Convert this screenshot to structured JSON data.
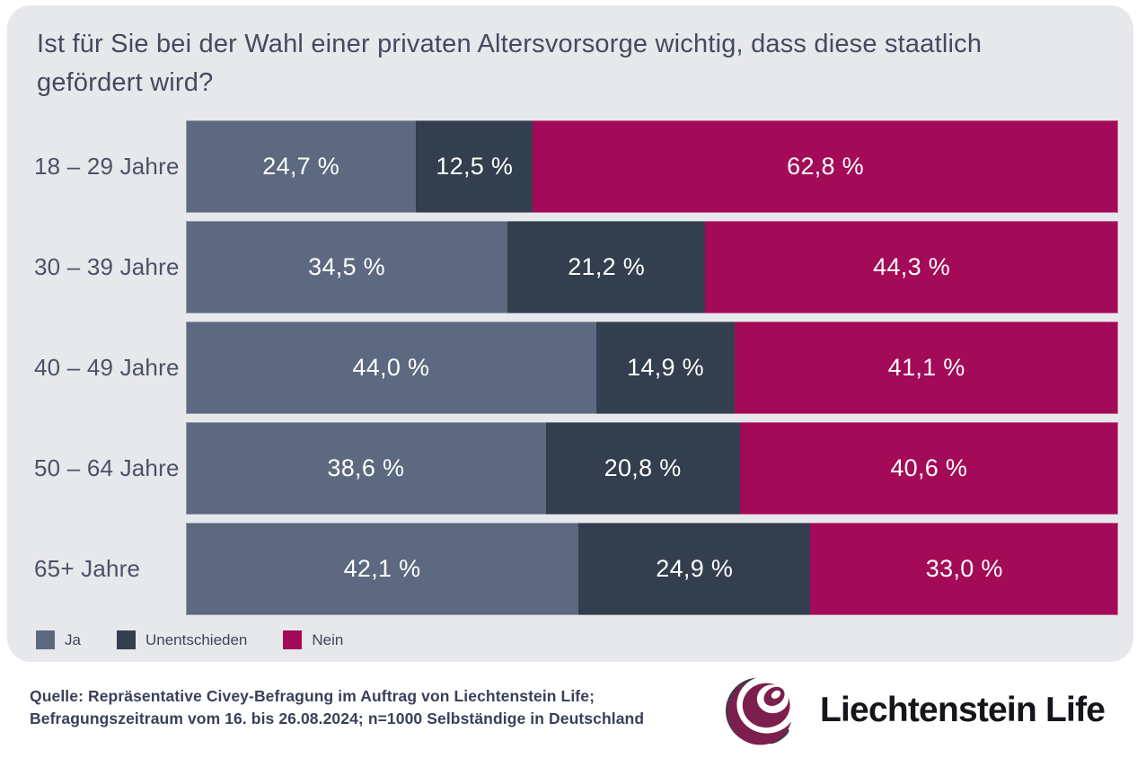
{
  "title": "Ist für Sie bei der Wahl einer privaten Altersvorsorge wichtig, dass diese staatlich gefördert wird?",
  "colors": {
    "card_bg": "#e7e8ec",
    "ja": "#5c6980",
    "unentschieden": "#333e4e",
    "nein": "#a30b58",
    "title_text": "#444b5e",
    "label_text": "#4b5266",
    "bar_value_text": "#ffffff",
    "source_text": "#3a3f5a",
    "logo_magenta": "#7d1f4e",
    "logo_dark": "#3c3c46",
    "logo_text": "#15151e"
  },
  "chart_data": {
    "type": "bar",
    "stacked": true,
    "orientation": "horizontal",
    "xlim": [
      0,
      100
    ],
    "grid": false,
    "value_format": "comma-decimal percent",
    "categories": [
      "18 – 29 Jahre",
      "30 – 39 Jahre",
      "40 – 49 Jahre",
      "50 – 64 Jahre",
      "65+ Jahre"
    ],
    "series": [
      {
        "name": "Ja",
        "color": "#5c6980",
        "values": [
          24.7,
          34.5,
          44.0,
          38.6,
          42.1
        ],
        "display": [
          "24,7 %",
          "34,5 %",
          "44,0 %",
          "38,6 %",
          "42,1 %"
        ]
      },
      {
        "name": "Unentschieden",
        "color": "#333e4e",
        "values": [
          12.5,
          21.2,
          14.9,
          20.8,
          24.9
        ],
        "display": [
          "12,5 %",
          "21,2 %",
          "14,9 %",
          "20,8 %",
          "24,9 %"
        ]
      },
      {
        "name": "Nein",
        "color": "#a30b58",
        "values": [
          62.8,
          44.3,
          41.1,
          40.6,
          33.0
        ],
        "display": [
          "62,8 %",
          "44,3 %",
          "41,1 %",
          "40,6 %",
          "33,0 %"
        ]
      }
    ],
    "legend_position": "bottom-left"
  },
  "legend": [
    {
      "label": "Ja",
      "color": "#5c6980"
    },
    {
      "label": "Unentschieden",
      "color": "#333e4e"
    },
    {
      "label": "Nein",
      "color": "#a30b58"
    }
  ],
  "source": {
    "line1": "Quelle: Repräsentative Civey-Befragung im Auftrag von Liechtenstein Life;",
    "line2": "Befragungszeitraum vom 16. bis 26.08.2024; n=1000 Selbständige in Deutschland"
  },
  "logo": {
    "text": "Liechtenstein Life",
    "icon": "liechtenstein-life-globe-icon"
  }
}
